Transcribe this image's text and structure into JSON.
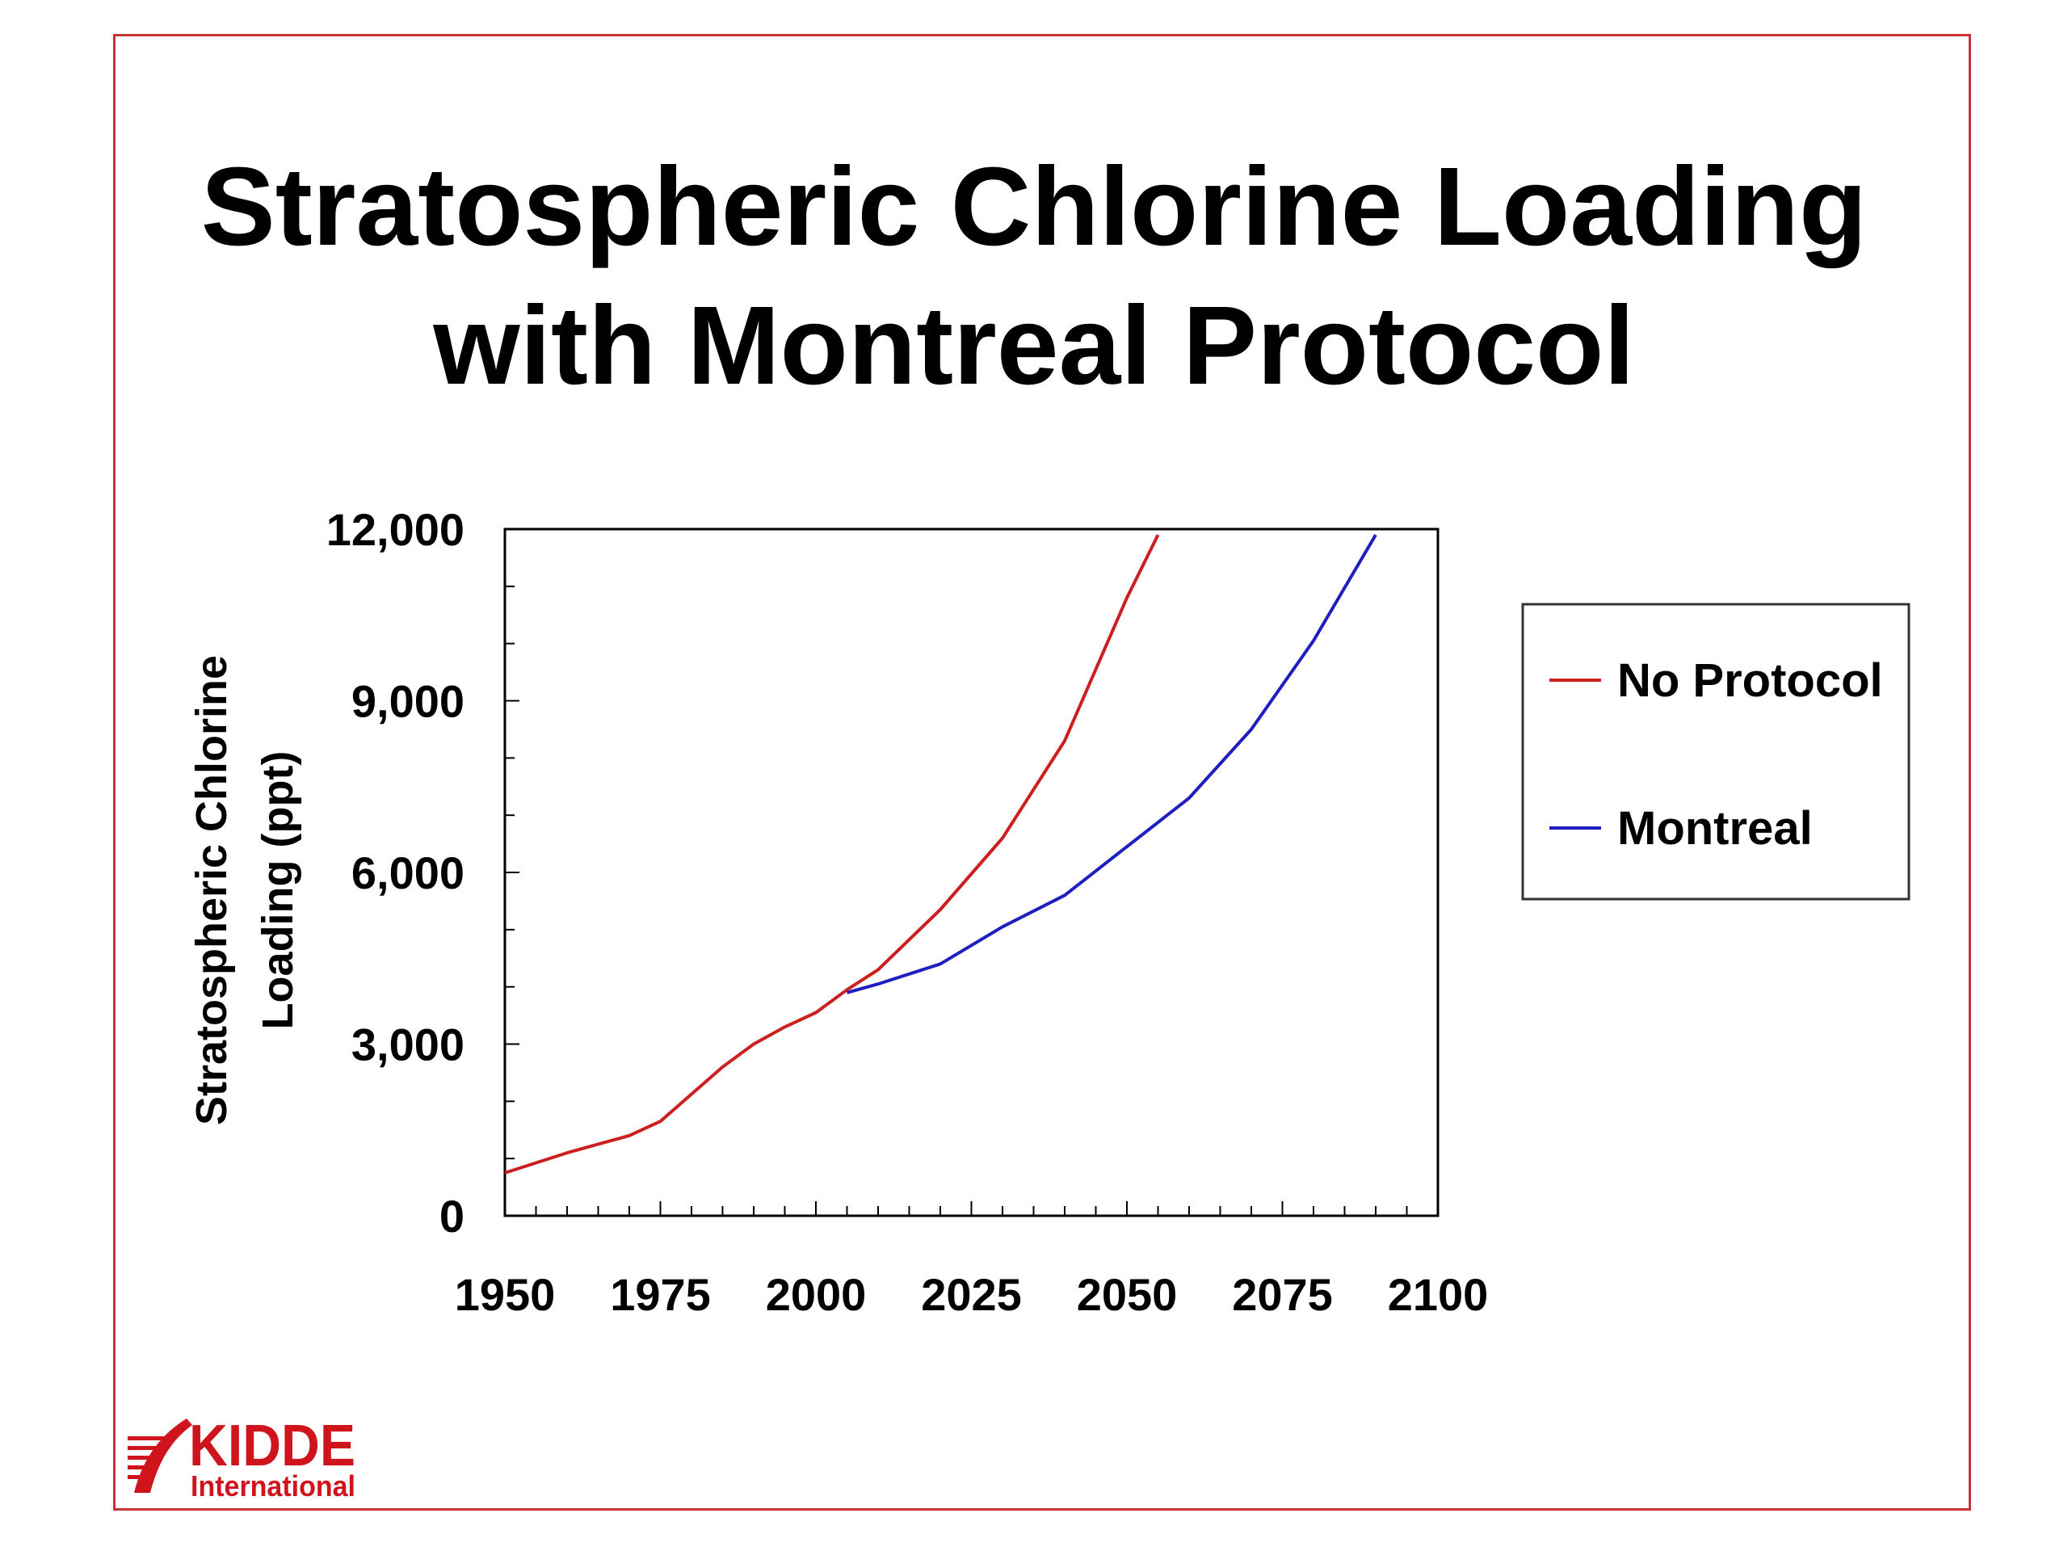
{
  "title_line1": "Stratospheric Chlorine Loading",
  "title_line2": "with Montreal Protocol",
  "logo": {
    "name": "KIDDE",
    "sub": "International",
    "color": "#d0141e"
  },
  "chart_data": {
    "type": "line",
    "title": "Stratospheric Chlorine Loading with Montreal Protocol",
    "ylabel_line1": "Stratospheric Chlorine",
    "ylabel_line2": "Loading (ppt)",
    "xlabel": "",
    "xlim": [
      1950,
      2100
    ],
    "ylim": [
      0,
      12000
    ],
    "x_ticks": [
      1950,
      1975,
      2000,
      2025,
      2050,
      2075,
      2100
    ],
    "x_tick_labels": [
      "1950",
      "1975",
      "2000",
      "2025",
      "2050",
      "2075",
      "2100"
    ],
    "y_ticks": [
      0,
      3000,
      6000,
      9000,
      12000
    ],
    "y_tick_labels": [
      "0",
      "3,000",
      "6,000",
      "9,000",
      "12,000"
    ],
    "grid": false,
    "legend_position": "right",
    "series": [
      {
        "name": "No Protocol",
        "color": "#cc1f1f",
        "points": [
          [
            1950,
            750
          ],
          [
            1960,
            1100
          ],
          [
            1970,
            1400
          ],
          [
            1975,
            1650
          ],
          [
            1985,
            2600
          ],
          [
            1990,
            3000
          ],
          [
            1995,
            3300
          ],
          [
            2000,
            3550
          ],
          [
            2005,
            3950
          ],
          [
            2010,
            4300
          ],
          [
            2020,
            5350
          ],
          [
            2030,
            6600
          ],
          [
            2040,
            8300
          ],
          [
            2050,
            10800
          ],
          [
            2055,
            11900
          ]
        ]
      },
      {
        "name": "Montreal",
        "color": "#1f1fbf",
        "points": [
          [
            2005,
            3900
          ],
          [
            2010,
            4050
          ],
          [
            2020,
            4400
          ],
          [
            2030,
            5050
          ],
          [
            2040,
            5600
          ],
          [
            2050,
            6450
          ],
          [
            2060,
            7300
          ],
          [
            2070,
            8500
          ],
          [
            2080,
            10050
          ],
          [
            2090,
            11900
          ]
        ]
      }
    ]
  }
}
